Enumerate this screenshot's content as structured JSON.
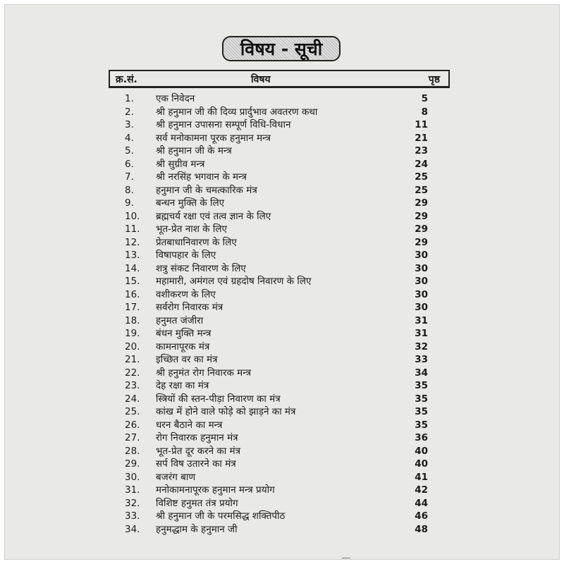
{
  "title": "विषय - सूची",
  "header": {
    "serial": "क्र.सं.",
    "subject": "विषय",
    "page": "पृष्ठ"
  },
  "entries": [
    {
      "num": "1.",
      "subject": "एक निवेदन",
      "page": "5"
    },
    {
      "num": "2.",
      "subject": "श्री हनुमान जी की दिव्य प्रार्दुभाव अवतरण कथा",
      "page": "8"
    },
    {
      "num": "3.",
      "subject": "श्री हनुमान उपासना सम्पूर्ण विधि-विधान",
      "page": "11"
    },
    {
      "num": "4.",
      "subject": "सर्व मनोकामना पूरक हनुमान मन्त्र",
      "page": "21"
    },
    {
      "num": "5.",
      "subject": "श्री हनुमान जी के मन्त्र",
      "page": "23"
    },
    {
      "num": "6.",
      "subject": "श्री सुग्रीव मन्त्र",
      "page": "24"
    },
    {
      "num": "7.",
      "subject": "श्री नरसिंह भगवान के मन्त्र",
      "page": "25"
    },
    {
      "num": "8.",
      "subject": "हनुमान जी के चमत्कारिक मंत्र",
      "page": "25"
    },
    {
      "num": "9.",
      "subject": "बन्धन मुक्ति के लिए",
      "page": "29"
    },
    {
      "num": "10.",
      "subject": "ब्रह्मचर्य रक्षा एवं तत्व ज्ञान के लिए",
      "page": "29"
    },
    {
      "num": "11.",
      "subject": "भूत-प्रेत नाश के लिए",
      "page": "29"
    },
    {
      "num": "12.",
      "subject": "प्रेतबाधानिवारण के लिए",
      "page": "29"
    },
    {
      "num": "13.",
      "subject": "विषापहार के लिए",
      "page": "30"
    },
    {
      "num": "14.",
      "subject": "शत्रु संकट निवारण के लिए",
      "page": "30"
    },
    {
      "num": "15.",
      "subject": "महामारी, अमंगल एवं ग्रहदोष निवारण के लिए",
      "page": "30"
    },
    {
      "num": "16.",
      "subject": "वशीकरण के लिए",
      "page": "30"
    },
    {
      "num": "17.",
      "subject": "सर्वरोग निवारक मंत्र",
      "page": "30"
    },
    {
      "num": "18.",
      "subject": "हनुमत जंजीरा",
      "page": "31"
    },
    {
      "num": "19.",
      "subject": "बंधन मुक्ति मन्त्र",
      "page": "31"
    },
    {
      "num": "20.",
      "subject": "कामनापूरक मंत्र",
      "page": "32"
    },
    {
      "num": "21.",
      "subject": "इच्छित वर का मंत्र",
      "page": "33"
    },
    {
      "num": "22.",
      "subject": "श्री हनुमंत रोग निवारक मन्त्र",
      "page": "34"
    },
    {
      "num": "23.",
      "subject": "देह रक्षा का मंत्र",
      "page": "35"
    },
    {
      "num": "24.",
      "subject": "स्त्रियों की स्तन-पीड़ा निवारण का मंत्र",
      "page": "35"
    },
    {
      "num": "25.",
      "subject": "कांख में होने वाले फोड़े को झाड़ने का मंत्र",
      "page": "35"
    },
    {
      "num": "26.",
      "subject": "धरन बैठाने का मन्त्र",
      "page": "35"
    },
    {
      "num": "27.",
      "subject": "रोग निवारक हनुमान मंत्र",
      "page": "36"
    },
    {
      "num": "28.",
      "subject": "भूत-प्रेत दूर करने का मंत्र",
      "page": "40"
    },
    {
      "num": "29.",
      "subject": "सर्प विष उतारने का मंत्र",
      "page": "40"
    },
    {
      "num": "30.",
      "subject": "बजरंग बाण",
      "page": "41"
    },
    {
      "num": "31.",
      "subject": "मनोकामनापूरक हनुमान मन्त्र प्रयोग",
      "page": "42"
    },
    {
      "num": "32.",
      "subject": "विशिष्ट हनुमत तंत्र प्रयोग",
      "page": "44"
    },
    {
      "num": "33.",
      "subject": "श्री हनुमान जी के परमसिद्ध शक्तिपीठ",
      "page": "46"
    },
    {
      "num": "34.",
      "subject": "हनुमद्धाम के हनुमान जी",
      "page": "48"
    }
  ]
}
